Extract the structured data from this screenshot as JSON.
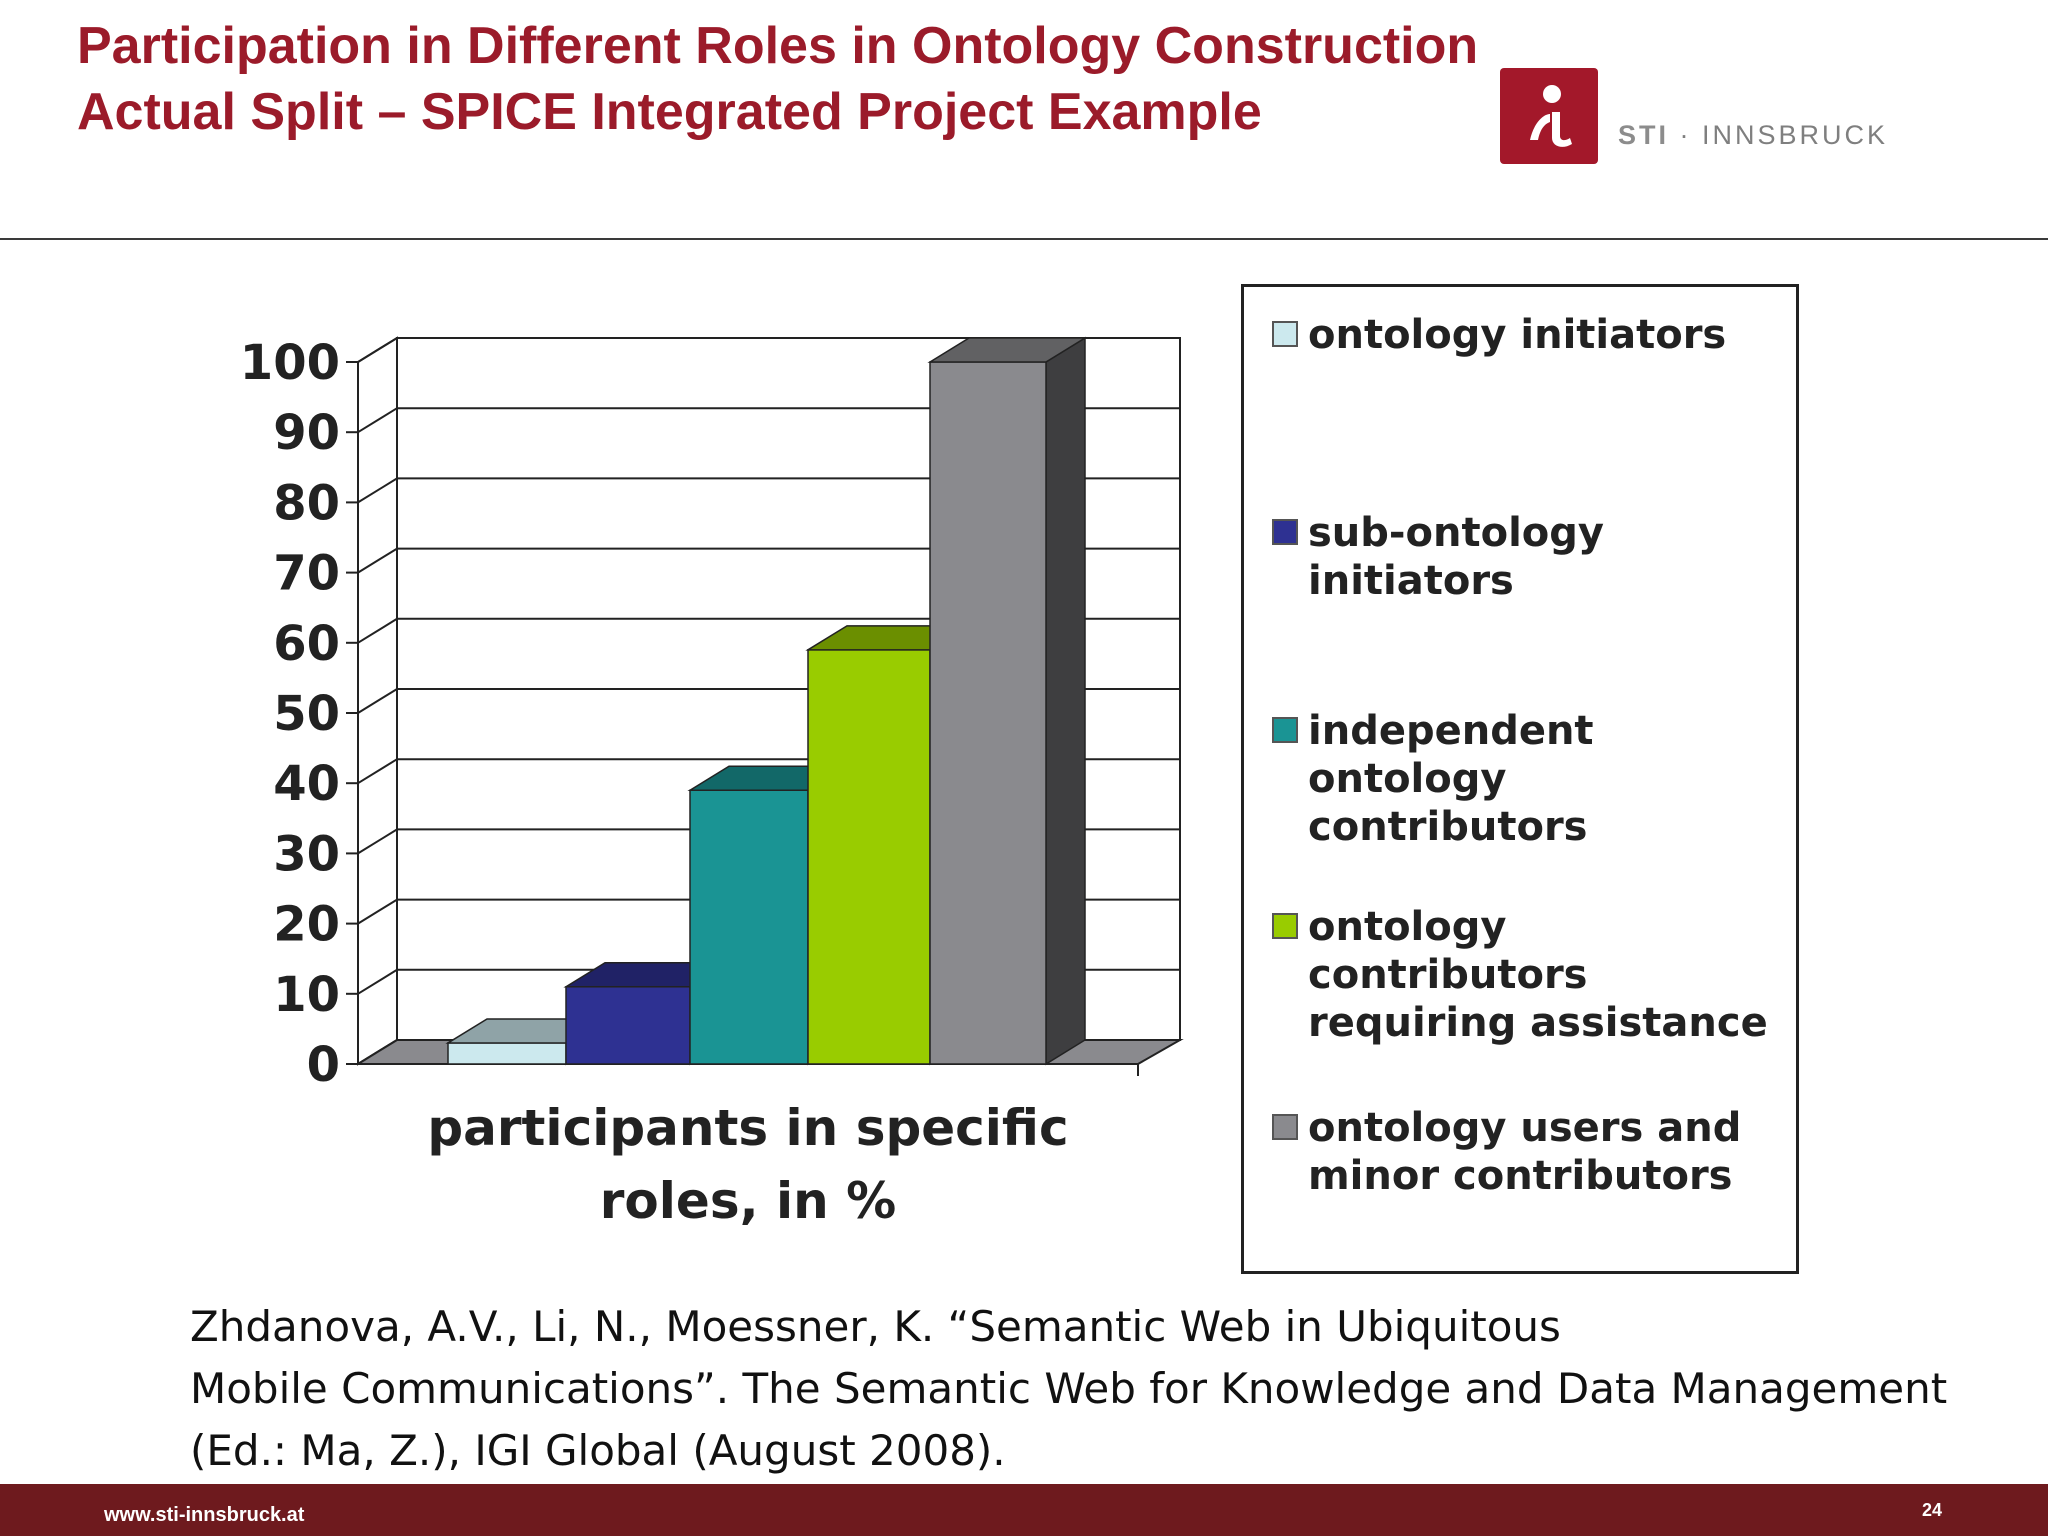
{
  "slide": {
    "title_line1": "Participation in Different Roles in Ontology Construction",
    "title_line2": "Actual Split – SPICE Integrated Project Example",
    "logo_text_bold": "STI",
    "logo_text_rest": " · INNSBRUCK",
    "reference_lines": [
      "Zhdanova, A.V., Li, N., Moessner, K. “Semantic Web in Ubiquitous",
      "Mobile Communications”. The Semantic Web for Knowledge and Data Management",
      "(Ed.: Ma, Z.), IGI Global (August 2008)."
    ],
    "footer_url": "www.sti-innsbruck.at",
    "page_number": "24",
    "brand_color": "#9b1b2a",
    "footer_color": "#6e1a1e"
  },
  "chart_data": {
    "type": "bar",
    "style": "3d-clustered",
    "categories": [
      "participants in specific roles, in %"
    ],
    "xlabel_lines": [
      "participants in specific",
      "roles, in %"
    ],
    "series": [
      {
        "name": "ontology initiators",
        "values": [
          3
        ],
        "color": "#cce9ee"
      },
      {
        "name": "sub-ontology initiators",
        "values": [
          11
        ],
        "color": "#2e3192"
      },
      {
        "name": "independent ontology contributors",
        "values": [
          39
        ],
        "color": "#1a9494"
      },
      {
        "name": "ontology contributors requiring assistance",
        "values": [
          59
        ],
        "color": "#99cc00"
      },
      {
        "name": "ontology users and minor contributors",
        "values": [
          100
        ],
        "color": "#8a8a8e"
      }
    ],
    "ylim": [
      0,
      100
    ],
    "yticks": [
      "0",
      "10",
      "20",
      "30",
      "40",
      "50",
      "60",
      "70",
      "80",
      "90",
      "100"
    ],
    "grid": true,
    "legend": {
      "position": "right",
      "entries": [
        [
          "ontology initiators"
        ],
        [
          "sub-ontology",
          "initiators"
        ],
        [
          "independent",
          "ontology",
          "contributors"
        ],
        [
          "ontology",
          "contributors",
          "requiring assistance"
        ],
        [
          "ontology users and",
          "minor contributors"
        ]
      ]
    }
  }
}
